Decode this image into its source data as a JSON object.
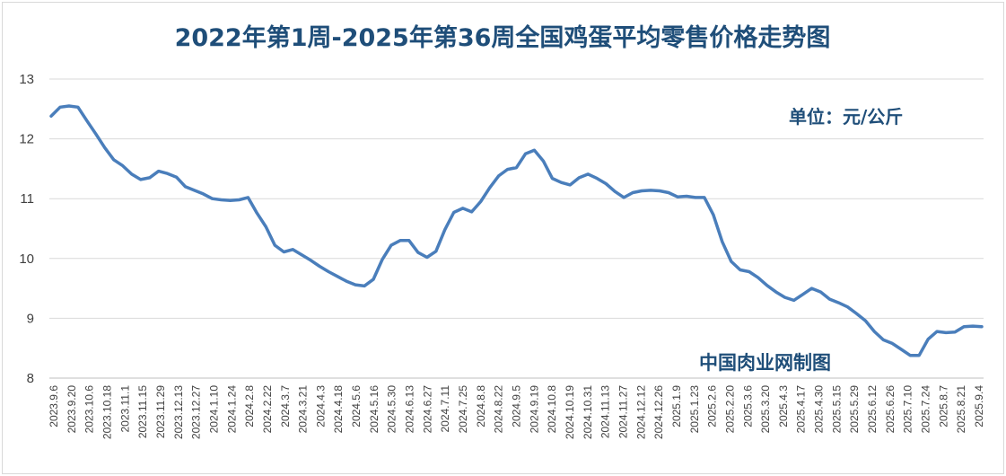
{
  "chart_data": {
    "type": "line",
    "title": "2022年第1周-2025年第36周全国鸡蛋平均零售价格走势图",
    "unit_note": "单位：元/公斤",
    "source_note": "中国肉业网制图",
    "ylim": [
      8,
      13
    ],
    "yticks": [
      "8",
      "9",
      "10",
      "11",
      "12",
      "13"
    ],
    "grid": true,
    "series_color": "#4a7ebb",
    "x_tick_labels": [
      "2023.9.6",
      "2023.9.20",
      "2023.10.6",
      "2023.10.18",
      "2023.11.1",
      "2023.11.15",
      "2023.11.29",
      "2023.12.13",
      "2023.12.27",
      "2024.1.10",
      "2024.1.24",
      "2024.2.8",
      "2024.2.22",
      "2024.3.7",
      "2024.3.21",
      "2024.4.3",
      "2024.4.18",
      "2024.5.6",
      "2024.5.16",
      "2024.5.30",
      "2024.6.13",
      "2024.6.27",
      "2024.7.11",
      "2024.7.25",
      "2024.8.8",
      "2024.8.22",
      "2024.9.5",
      "2024.9.19",
      "2024.10.8",
      "2024.10.19",
      "2024.10.31",
      "2024.11.13",
      "2024.11.27",
      "2024.12.12",
      "2024.12.26",
      "2025.1.9",
      "2025.1.23",
      "2025.2.6",
      "2025.2.20",
      "2025.3.6",
      "2025.3.20",
      "2025.4.3",
      "2025.4.17",
      "2025.4.30",
      "2025.5.15",
      "2025.5.29",
      "2025.6.12",
      "2025.6.26",
      "2025.7.10",
      "2025.7.24",
      "2025.8.7",
      "2025.8.21",
      "2025.9.4"
    ],
    "values": [
      12.38,
      12.53,
      12.55,
      12.53,
      12.3,
      12.08,
      11.85,
      11.65,
      11.55,
      11.41,
      11.32,
      11.35,
      11.46,
      11.42,
      11.36,
      11.2,
      11.14,
      11.08,
      11.0,
      10.98,
      10.97,
      10.98,
      11.02,
      10.76,
      10.53,
      10.22,
      10.11,
      10.15,
      10.06,
      9.97,
      9.87,
      9.78,
      9.7,
      9.62,
      9.56,
      9.54,
      9.65,
      9.98,
      10.22,
      10.3,
      10.3,
      10.1,
      10.02,
      10.12,
      10.48,
      10.77,
      10.84,
      10.78,
      10.95,
      11.18,
      11.38,
      11.49,
      11.52,
      11.75,
      11.81,
      11.63,
      11.34,
      11.27,
      11.23,
      11.35,
      11.41,
      11.34,
      11.25,
      11.12,
      11.02,
      11.1,
      11.13,
      11.14,
      11.13,
      11.1,
      11.03,
      11.04,
      11.02,
      11.02,
      10.73,
      10.28,
      9.95,
      9.81,
      9.78,
      9.68,
      9.55,
      9.44,
      9.35,
      9.3,
      9.4,
      9.5,
      9.44,
      9.32,
      9.26,
      9.19,
      9.08,
      8.96,
      8.78,
      8.64,
      8.58,
      8.48,
      8.38,
      8.38,
      8.65,
      8.78,
      8.76,
      8.77,
      8.86,
      8.87,
      8.86
    ]
  }
}
